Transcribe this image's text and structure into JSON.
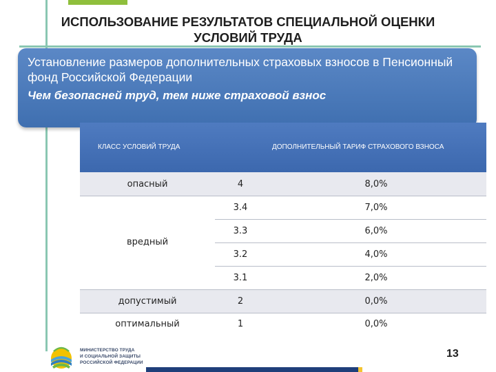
{
  "title": {
    "line1": "ИСПОЛЬЗОВАНИЕ РЕЗУЛЬТАТОВ СПЕЦИАЛЬНОЙ ОЦЕНКИ",
    "line2": "УСЛОВИЙ ТРУДА"
  },
  "banner": {
    "text": "Установление размеров дополнительных страховых взносов в Пенсионный фонд Российской Федерации",
    "emphasis": "Чем безопасней труд, тем ниже страховой взнос"
  },
  "table": {
    "header_class": "КЛАСС УСЛОВИЙ ТРУДА",
    "header_tariff": "ДОПОЛНИТЕЛЬНЫЙ ТАРИФ СТРАХОВОГО ВЗНОСА",
    "rows": [
      {
        "name": "опасный",
        "subclass": "4",
        "rate": "8,0%"
      },
      {
        "name": "",
        "subclass": "3.4",
        "rate": "7,0%"
      },
      {
        "name": "вредный",
        "subclass": "3.3",
        "rate": "6,0%"
      },
      {
        "name": "",
        "subclass": "3.2",
        "rate": "4,0%"
      },
      {
        "name": "",
        "subclass": "3.1",
        "rate": "2,0%"
      },
      {
        "name": "допустимый",
        "subclass": "2",
        "rate": "0,0%"
      },
      {
        "name": "оптимальный",
        "subclass": "1",
        "rate": "0,0%"
      }
    ]
  },
  "footer": {
    "logo_line1": "МИНИСТЕРСТВО ТРУДА",
    "logo_line2": "И СОЦИАЛЬНОЙ ЗАЩИТЫ",
    "logo_line3": "РОССИЙСКОЙ ФЕДЕРАЦИИ",
    "page_number": "13"
  },
  "colors": {
    "banner_blue": "#4a79bb",
    "header_blue": "#4573b8",
    "accent_green": "#8fbf3c",
    "guide_teal": "#8ac7b2",
    "footer_navy": "#1f3f7a"
  }
}
